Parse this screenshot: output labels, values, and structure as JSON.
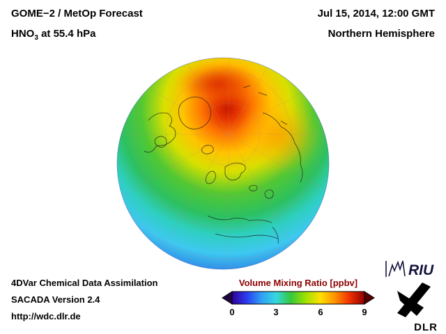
{
  "header": {
    "product": "GOME−2 / MetOp Forecast",
    "species_prefix": "HNO",
    "species_sub": "3",
    "species_suffix": " at 55.4 hPa",
    "datetime": "Jul 15, 2014, 12:00 GMT",
    "hemisphere": "Northern Hemisphere"
  },
  "colorbar": {
    "title": "Volume Mixing Ratio [ppbv]",
    "title_color": "#8b0000",
    "ticks": [
      "0",
      "3",
      "6",
      "9"
    ],
    "under_color": "#200640",
    "over_color": "#520000",
    "colors": [
      "#30009a",
      "#2b3cf0",
      "#2fa0f5",
      "#35d8e0",
      "#35c83c",
      "#9fe000",
      "#ffe000",
      "#ff9000",
      "#f03000",
      "#8f0000"
    ]
  },
  "footer": {
    "line1": "4DVar Chemical Data Assimilation",
    "line2": "SACADA Version 2.4",
    "line3": "http://wdc.dlr.de"
  },
  "logos": {
    "riu": "RIU",
    "dlr": "DLR"
  },
  "chart_data": {
    "type": "heatmap",
    "title": "GOME−2 / MetOp Forecast — HNO3 at 55.4 hPa",
    "timestamp": "Jul 15, 2014, 12:00 GMT",
    "view": "Northern Hemisphere polar orthographic globe with coastlines and graticule",
    "variable": "HNO3 volume mixing ratio",
    "units": "ppbv",
    "pressure_level_hPa": 55.4,
    "colorbar_label": "Volume Mixing Ratio [ppbv]",
    "colorbar_ticks": [
      0,
      3,
      6,
      9
    ],
    "colorbar_min": 0,
    "colorbar_max": 10,
    "colorbar_orientation": "horizontal with under/over range arrows",
    "spatial_pattern": [
      {
        "region": "Arctic cap maximum near pole toward Siberian side",
        "approx_value_ppbv": 8.5
      },
      {
        "region": "High Arctic 70–90N",
        "approx_value_ppbv": 7
      },
      {
        "region": "Northern Russia / Siberia band",
        "approx_value_ppbv": 5.5
      },
      {
        "region": "Northern Europe and northern Canada",
        "approx_value_ppbv": 4
      },
      {
        "region": "Mid-latitudes 40–55N",
        "approx_value_ppbv": 2.5
      },
      {
        "region": "Subtropics 20–35N",
        "approx_value_ppbv": 1
      },
      {
        "region": "Tropical limb of globe",
        "approx_value_ppbv": 0.5
      }
    ]
  }
}
